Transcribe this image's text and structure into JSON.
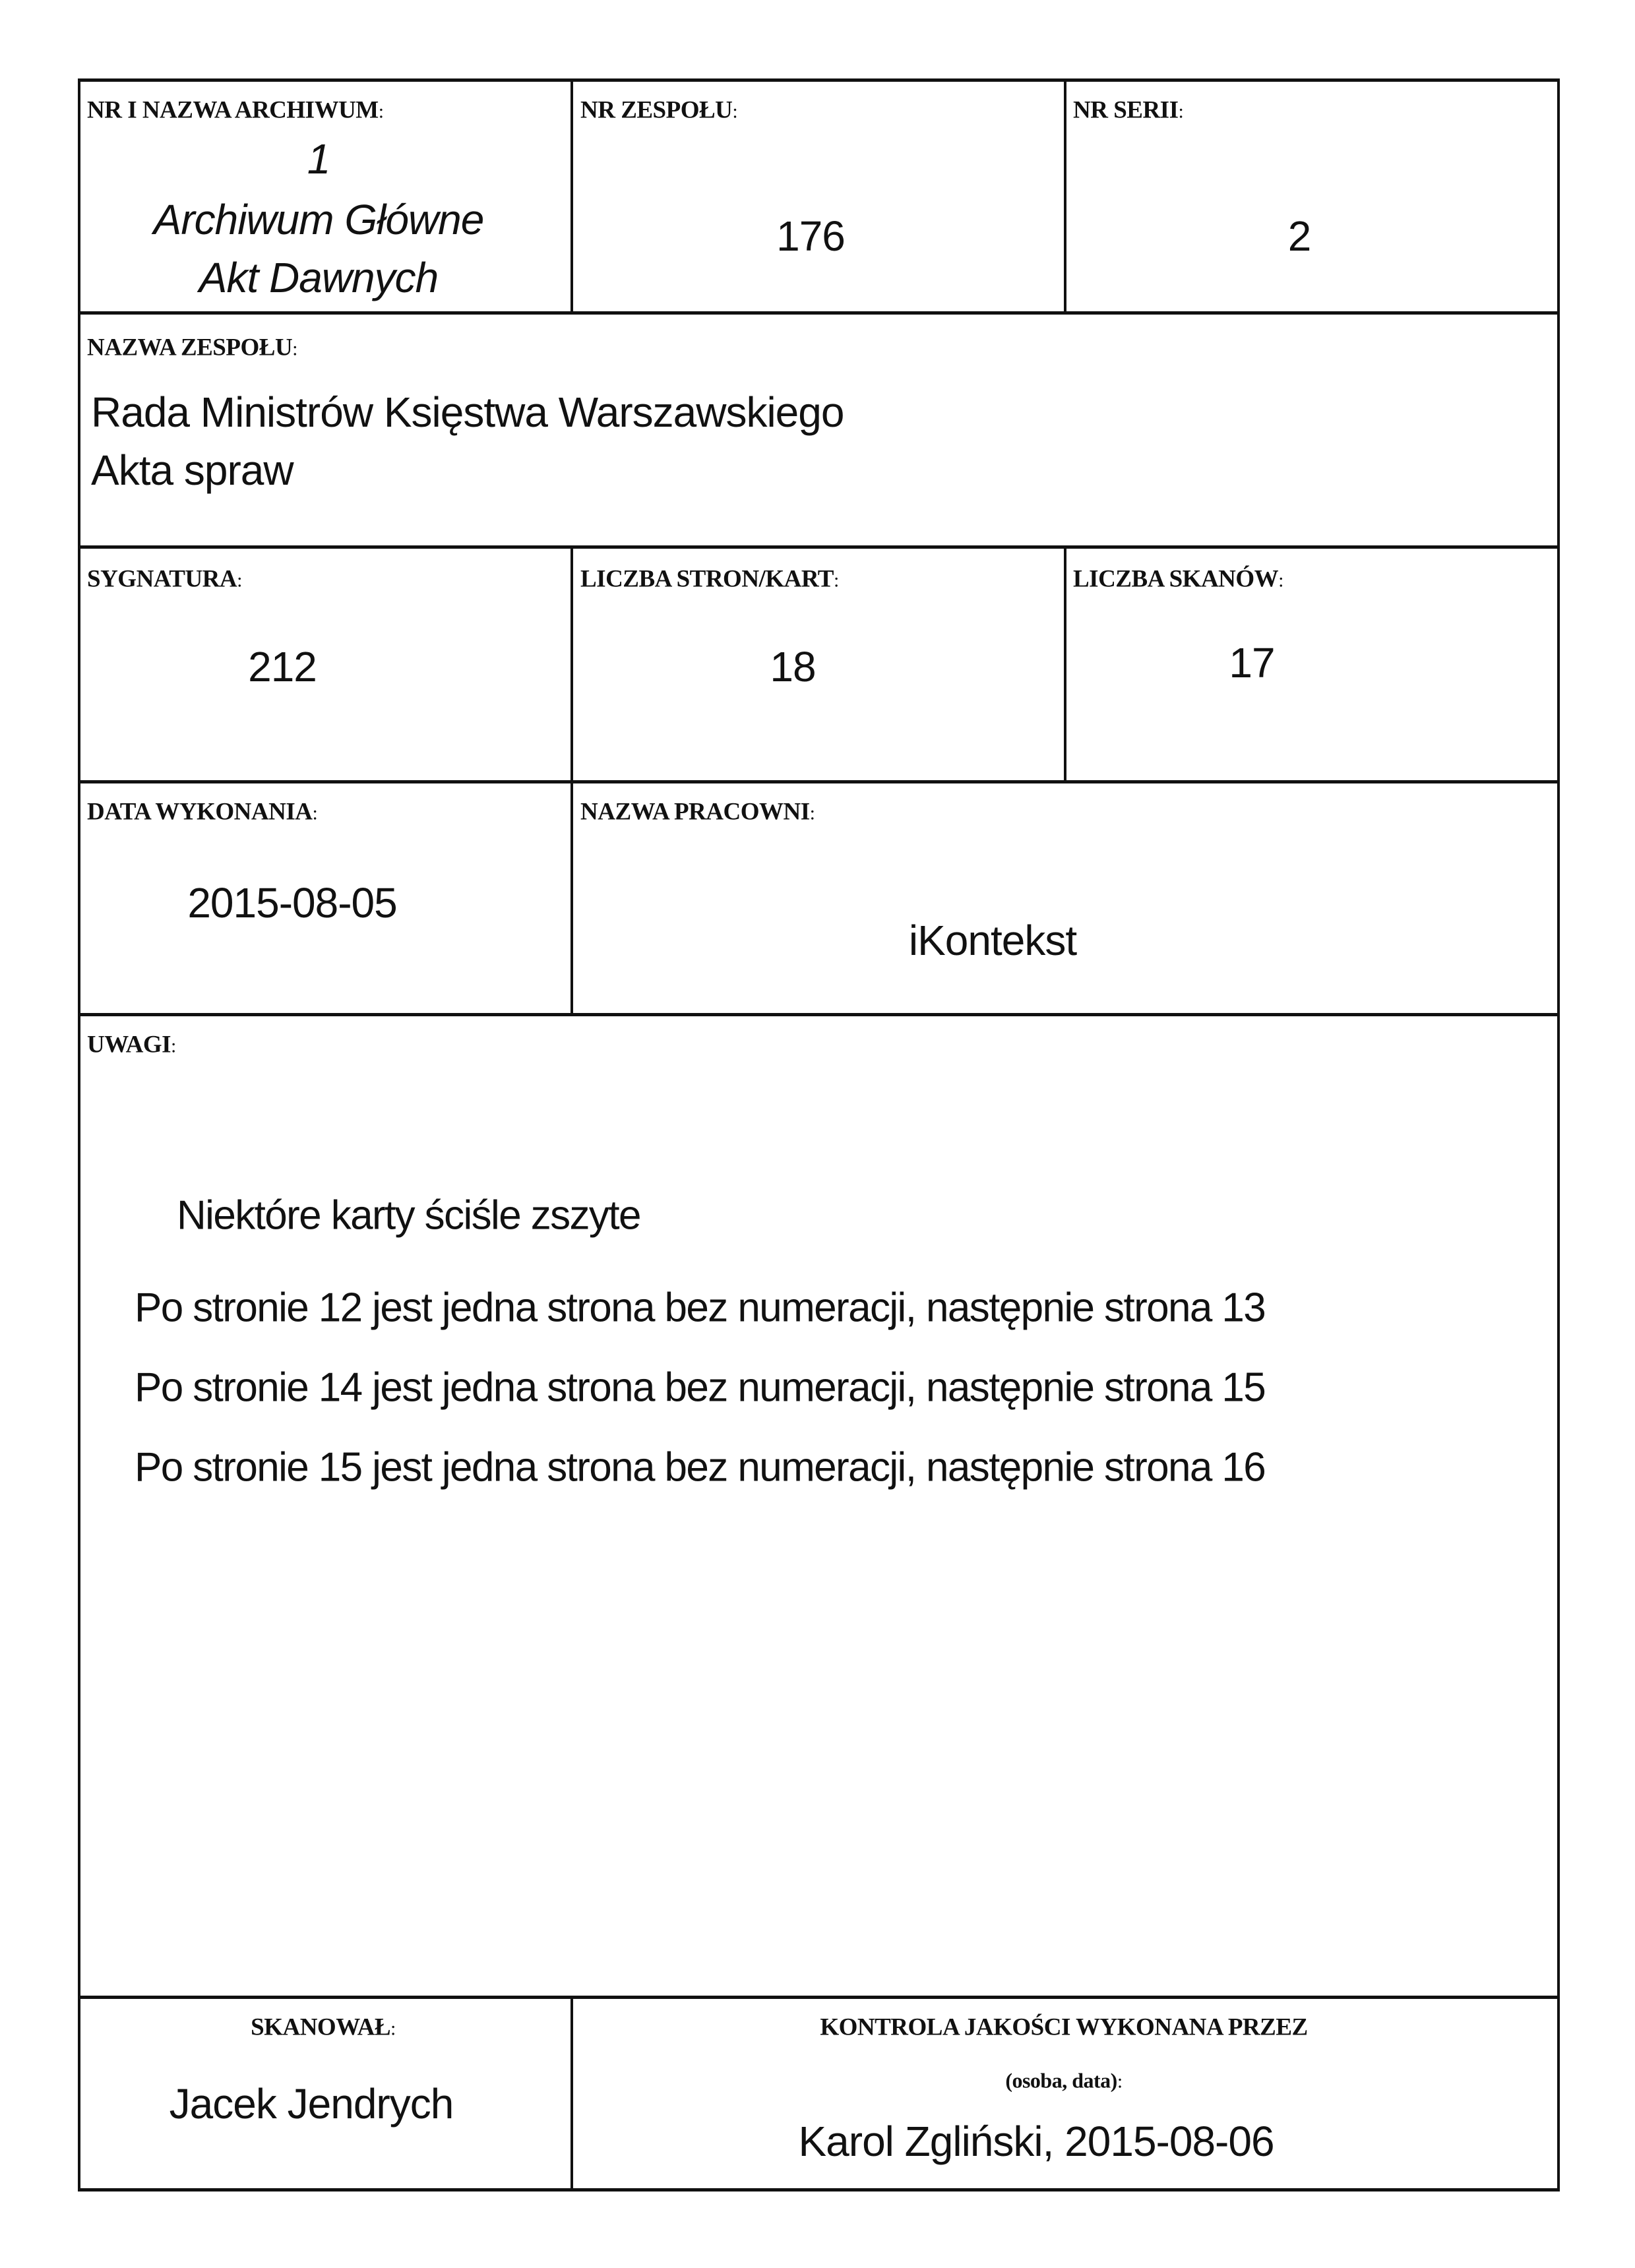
{
  "archive": {
    "label": "NR I NAZWA ARCHIWUM",
    "number": "1",
    "name_line1": "Archiwum Główne",
    "name_line2": "Akt Dawnych"
  },
  "fond_number": {
    "label": "NR ZESPOŁU",
    "value": "176"
  },
  "series_number": {
    "label": "NR SERII",
    "value": "2"
  },
  "fond_name": {
    "label": "NAZWA ZESPOŁU",
    "line1": "Rada Ministrów Księstwa Warszawskiego",
    "line2": "Akta spraw"
  },
  "signature": {
    "label": "SYGNATURA",
    "value": "212"
  },
  "pages_count": {
    "label": "LICZBA STRON/KART",
    "value": "18"
  },
  "scans_count": {
    "label": "LICZBA SKANÓW",
    "value": "17"
  },
  "date_made": {
    "label": "DATA WYKONANIA",
    "value": "2015-08-05"
  },
  "studio_name": {
    "label": "NAZWA PRACOWNI",
    "value": "iKontekst"
  },
  "notes": {
    "label": "UWAGI",
    "lines": [
      "Niektóre karty ściśle zszyte",
      "Po stronie 12 jest jedna strona bez numeracji, następnie strona 13",
      "Po stronie 14 jest jedna strona bez numeracji, następnie strona 15",
      "Po stronie 15 jest jedna strona bez numeracji, następnie strona 16"
    ]
  },
  "scanned_by": {
    "label": "SKANOWAŁ",
    "value": "Jacek Jendrych"
  },
  "quality_control": {
    "label": "KONTROLA JAKOŚCI WYKONANA PRZEZ",
    "sublabel": "(osoba, data)",
    "value": "Karol Zgliński, 2015-08-06"
  },
  "colon": ":"
}
